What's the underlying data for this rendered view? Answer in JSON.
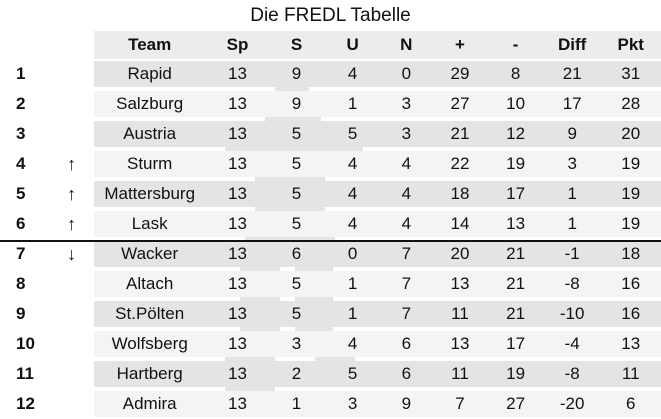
{
  "title": "Die FREDL Tabelle",
  "headers": {
    "rank": "",
    "arrow": "",
    "team": "Team",
    "sp": "Sp",
    "s": "S",
    "u": "U",
    "n": "N",
    "plus": "+",
    "minus": "-",
    "diff": "Diff",
    "pkt": "Pkt"
  },
  "rows": [
    {
      "rank": "1",
      "arrow": "",
      "team": "Rapid",
      "sp": "13",
      "s": "9",
      "u": "4",
      "n": "0",
      "plus": "29",
      "minus": "8",
      "diff": "21",
      "pkt": "31"
    },
    {
      "rank": "2",
      "arrow": "",
      "team": "Salzburg",
      "sp": "13",
      "s": "9",
      "u": "1",
      "n": "3",
      "plus": "27",
      "minus": "10",
      "diff": "17",
      "pkt": "28"
    },
    {
      "rank": "3",
      "arrow": "",
      "team": "Austria",
      "sp": "13",
      "s": "5",
      "u": "5",
      "n": "3",
      "plus": "21",
      "minus": "12",
      "diff": "9",
      "pkt": "20"
    },
    {
      "rank": "4",
      "arrow": "↑",
      "team": "Sturm",
      "sp": "13",
      "s": "5",
      "u": "4",
      "n": "4",
      "plus": "22",
      "minus": "19",
      "diff": "3",
      "pkt": "19"
    },
    {
      "rank": "5",
      "arrow": "↑",
      "team": "Mattersburg",
      "sp": "13",
      "s": "5",
      "u": "4",
      "n": "4",
      "plus": "18",
      "minus": "17",
      "diff": "1",
      "pkt": "19"
    },
    {
      "rank": "6",
      "arrow": "↑",
      "team": "Lask",
      "sp": "13",
      "s": "5",
      "u": "4",
      "n": "4",
      "plus": "14",
      "minus": "13",
      "diff": "1",
      "pkt": "19"
    },
    {
      "rank": "7",
      "arrow": "↓",
      "team": "Wacker",
      "sp": "13",
      "s": "6",
      "u": "0",
      "n": "7",
      "plus": "20",
      "minus": "21",
      "diff": "-1",
      "pkt": "18"
    },
    {
      "rank": "8",
      "arrow": "",
      "team": "Altach",
      "sp": "13",
      "s": "5",
      "u": "1",
      "n": "7",
      "plus": "13",
      "minus": "21",
      "diff": "-8",
      "pkt": "16"
    },
    {
      "rank": "9",
      "arrow": "",
      "team": "St.Pölten",
      "sp": "13",
      "s": "5",
      "u": "1",
      "n": "7",
      "plus": "11",
      "minus": "21",
      "diff": "-10",
      "pkt": "16"
    },
    {
      "rank": "10",
      "arrow": "",
      "team": "Wolfsberg",
      "sp": "13",
      "s": "3",
      "u": "4",
      "n": "6",
      "plus": "13",
      "minus": "17",
      "diff": "-4",
      "pkt": "13"
    },
    {
      "rank": "11",
      "arrow": "",
      "team": "Hartberg",
      "sp": "13",
      "s": "2",
      "u": "5",
      "n": "6",
      "plus": "11",
      "minus": "19",
      "diff": "-8",
      "pkt": "11"
    },
    {
      "rank": "12",
      "arrow": "",
      "team": "Admira",
      "sp": "13",
      "s": "1",
      "u": "3",
      "n": "9",
      "plus": "7",
      "minus": "27",
      "diff": "-20",
      "pkt": "6"
    }
  ],
  "arrow_icons": {
    "↑": "arrow-up-icon",
    "↓": "arrow-down-icon"
  },
  "colors": {
    "band_dark": "#e4e4e4",
    "band_light": "#f4f4f4",
    "text": "#111111",
    "divider": "#111111"
  }
}
